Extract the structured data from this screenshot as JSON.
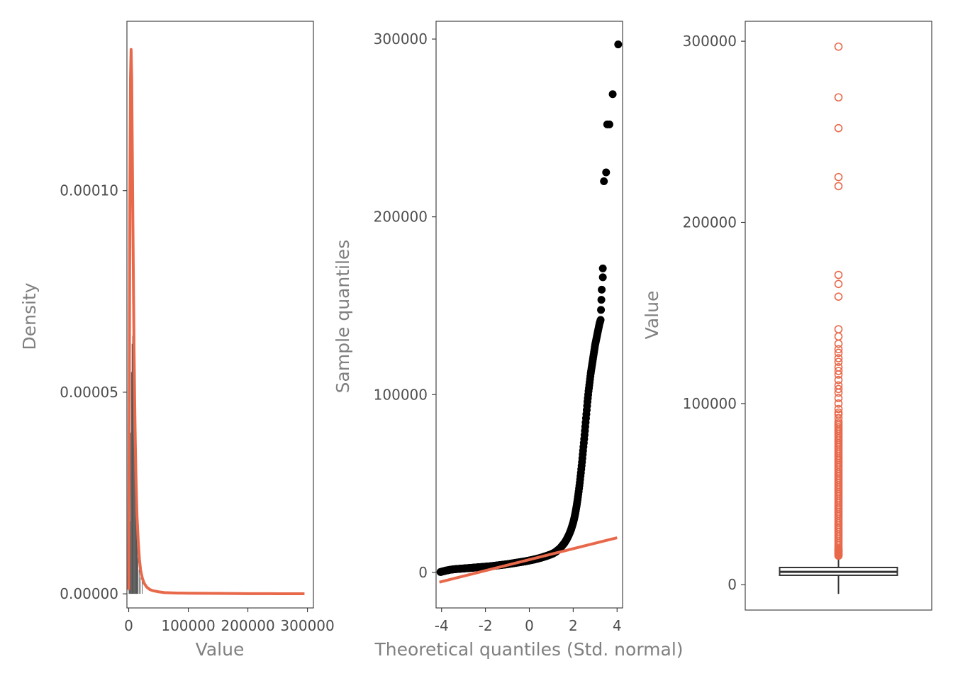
{
  "colors": {
    "accent": "#E8684A",
    "dark": "#000000",
    "bar": "#4D4D4D",
    "box": "#333333"
  },
  "chart_data": [
    {
      "type": "area",
      "xlabel": "Value",
      "ylabel": "Density",
      "xlim": [
        -3000,
        310000
      ],
      "ylim": [
        -3.5e-06,
        0.000142
      ],
      "x_ticks": [
        {
          "value": 0,
          "label": "0"
        },
        {
          "value": 100000,
          "label": "100000"
        },
        {
          "value": 200000,
          "label": "200000"
        },
        {
          "value": 300000,
          "label": "300000"
        }
      ],
      "y_ticks": [
        {
          "value": 0,
          "label": "0.00000"
        },
        {
          "value": 5e-05,
          "label": "0.00005"
        },
        {
          "value": 0.0001,
          "label": "0.00010"
        }
      ],
      "histogram": {
        "bin_width": 1000,
        "bins": [
          {
            "x": 0,
            "density": 2.4e-05
          },
          {
            "x": 1000,
            "density": 1.4e-05
          },
          {
            "x": 2000,
            "density": 1.8e-05
          },
          {
            "x": 3000,
            "density": 4e-05
          },
          {
            "x": 4000,
            "density": 5.5e-05
          },
          {
            "x": 5000,
            "density": 6.2e-05
          },
          {
            "x": 6000,
            "density": 6.4e-05
          },
          {
            "x": 7000,
            "density": 6.5e-05
          },
          {
            "x": 8000,
            "density": 5.8e-05
          },
          {
            "x": 9000,
            "density": 5e-05
          },
          {
            "x": 10000,
            "density": 3.6e-05
          },
          {
            "x": 11000,
            "density": 2.8e-05
          },
          {
            "x": 12000,
            "density": 2.1e-05
          },
          {
            "x": 13000,
            "density": 1.6e-05
          },
          {
            "x": 14000,
            "density": 1.2e-05
          },
          {
            "x": 15000,
            "density": 9e-06
          },
          {
            "x": 17000,
            "density": 6e-06
          },
          {
            "x": 19000,
            "density": 4e-06
          },
          {
            "x": 22000,
            "density": 3e-06
          }
        ]
      },
      "density_curve": {
        "x": [
          0,
          1000,
          2000,
          3000,
          4000,
          5000,
          6000,
          7000,
          8000,
          9000,
          10000,
          11000,
          12000,
          13000,
          14000,
          16000,
          18000,
          20000,
          23000,
          26000,
          30000,
          35000,
          40000,
          50000,
          60000,
          80000,
          100000,
          150000,
          200000,
          250000,
          295000
        ],
        "y": [
          1e-06,
          5e-05,
          0.0001,
          0.000128,
          0.000135,
          0.000128,
          0.00011,
          9.2e-05,
          7.6e-05,
          6e-05,
          4.8e-05,
          3.8e-05,
          3e-05,
          2.4e-05,
          1.9e-05,
          1.3e-05,
          8.5e-06,
          5.8e-06,
          3.8e-06,
          2.6e-06,
          1.7e-06,
          1.1e-06,
          8e-07,
          5e-07,
          3e-07,
          2e-07,
          1.5e-07,
          1e-07,
          5e-08,
          3e-08,
          2e-08
        ]
      }
    },
    {
      "type": "scatter",
      "xlabel": "Theoretical quantiles (Std. normal)",
      "ylabel": "Sample quantiles",
      "xlim": [
        -4.25,
        4.25
      ],
      "ylim": [
        -20000,
        310000
      ],
      "x_ticks": [
        {
          "value": -4,
          "label": "-4"
        },
        {
          "value": -2,
          "label": "-2"
        },
        {
          "value": 0,
          "label": "0"
        },
        {
          "value": 2,
          "label": "2"
        },
        {
          "value": 4,
          "label": "4"
        }
      ],
      "y_ticks": [
        {
          "value": 0,
          "label": "0"
        },
        {
          "value": 100000,
          "label": "100000"
        },
        {
          "value": 200000,
          "label": "200000"
        },
        {
          "value": 300000,
          "label": "300000"
        }
      ],
      "reference_line": {
        "x1": -4.1,
        "y1": -5500,
        "x2": 4.0,
        "y2": 19500
      },
      "points": {
        "x": [
          -4.05,
          -3.8,
          -3.6,
          -3.4,
          -3.2,
          -3.0,
          -2.8,
          -2.6,
          -2.4,
          -2.2,
          -2.0,
          -1.8,
          -1.6,
          -1.4,
          -1.2,
          -1.0,
          -0.8,
          -0.6,
          -0.4,
          -0.2,
          0.0,
          0.2,
          0.4,
          0.6,
          0.8,
          1.0,
          1.1,
          1.2,
          1.3,
          1.4,
          1.5,
          1.6,
          1.7,
          1.8,
          1.9,
          2.0,
          2.05,
          2.1,
          2.15,
          2.2,
          2.25,
          2.3,
          2.35,
          2.4,
          2.45,
          2.5,
          2.55,
          2.6,
          2.65,
          2.7,
          2.75,
          2.8,
          2.85,
          2.9,
          2.95,
          3.0,
          3.05,
          3.1,
          3.15,
          3.2,
          3.25,
          3.3,
          3.35,
          3.35,
          3.4,
          3.5,
          3.55,
          3.65,
          3.8,
          4.05
        ],
        "y": [
          200,
          1000,
          1500,
          1800,
          2000,
          2200,
          2400,
          2600,
          2800,
          3000,
          3200,
          3400,
          3700,
          4000,
          4300,
          4600,
          5000,
          5400,
          5800,
          6200,
          6700,
          7200,
          7800,
          8500,
          9300,
          10200,
          10800,
          11500,
          12500,
          13500,
          15000,
          16500,
          18500,
          21000,
          24000,
          28000,
          30500,
          33500,
          37000,
          41000,
          45500,
          50500,
          56000,
          62000,
          68500,
          75000,
          82000,
          89000,
          96000,
          102000,
          107000,
          112000,
          116000,
          120000,
          124000,
          128000,
          131000,
          134000,
          137000,
          140000,
          142000,
          159000,
          166000,
          171000,
          220000,
          225000,
          252000,
          252000,
          269000,
          297000
        ]
      }
    },
    {
      "type": "box",
      "xlabel": "",
      "ylabel": "Value",
      "ylim": [
        -14000,
        311000
      ],
      "y_ticks": [
        {
          "value": 0,
          "label": "0"
        },
        {
          "value": 100000,
          "label": "100000"
        },
        {
          "value": 200000,
          "label": "200000"
        },
        {
          "value": 300000,
          "label": "300000"
        }
      ],
      "box": {
        "whisker_low": 400,
        "q1": 5200,
        "median": 7100,
        "q3": 9500,
        "whisker_high": 15500
      },
      "outliers": [
        16000,
        16500,
        17000,
        17500,
        18000,
        18500,
        19000,
        19500,
        20000,
        21000,
        22000,
        23000,
        24000,
        25000,
        26000,
        27000,
        28000,
        29000,
        30000,
        31000,
        32000,
        33000,
        34000,
        35000,
        36000,
        37000,
        38000,
        39000,
        40000,
        41000,
        42000,
        43000,
        44000,
        45000,
        46000,
        47000,
        48000,
        49000,
        50000,
        51000,
        52000,
        53000,
        54000,
        55000,
        56000,
        57000,
        58000,
        59000,
        60000,
        61000,
        62000,
        63000,
        64000,
        65000,
        66000,
        67000,
        68000,
        69000,
        70000,
        71000,
        72000,
        73000,
        74000,
        75000,
        76000,
        77000,
        78000,
        79000,
        80000,
        81000,
        82000,
        83000,
        84000,
        85000,
        86000,
        87000,
        88000,
        89000,
        90000,
        92000,
        94000,
        95000,
        97000,
        100000,
        103000,
        106000,
        108000,
        110000,
        113000,
        116000,
        118000,
        120000,
        123000,
        125000,
        128000,
        130000,
        133000,
        137000,
        141000,
        159000,
        166000,
        171000,
        220000,
        225000,
        252000,
        269000,
        297000
      ]
    }
  ]
}
